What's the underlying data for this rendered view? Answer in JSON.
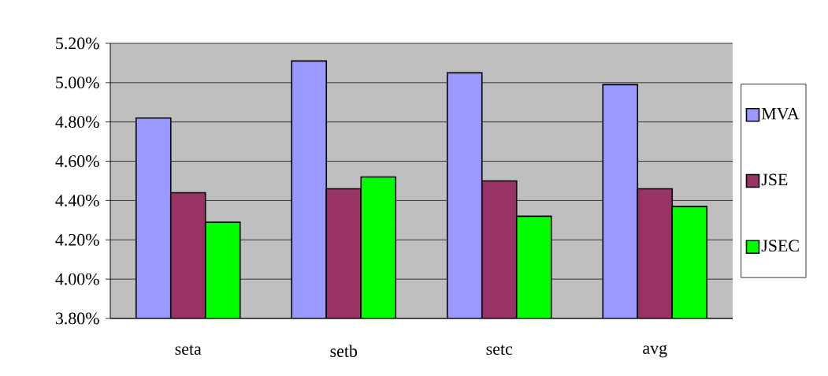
{
  "chart_data": {
    "type": "bar",
    "categories": [
      "seta",
      "setb",
      "setc",
      "avg"
    ],
    "series": [
      {
        "name": "MVA",
        "color": "#9999ff",
        "values": [
          4.82,
          5.11,
          5.05,
          4.99
        ]
      },
      {
        "name": "JSE",
        "color": "#993366",
        "values": [
          4.44,
          4.46,
          4.5,
          4.46
        ]
      },
      {
        "name": "JSEC",
        "color": "#00ff00",
        "values": [
          4.29,
          4.52,
          4.32,
          4.37
        ]
      }
    ],
    "ylim": [
      3.8,
      5.2
    ],
    "yticks": [
      {
        "value": 3.8,
        "label": "3.80%"
      },
      {
        "value": 4.0,
        "label": "4.00%"
      },
      {
        "value": 4.2,
        "label": "4.20%"
      },
      {
        "value": 4.4,
        "label": "4.40%"
      },
      {
        "value": 4.6,
        "label": "4.60%"
      },
      {
        "value": 4.8,
        "label": "4.80%"
      },
      {
        "value": 5.0,
        "label": "5.00%"
      },
      {
        "value": 5.2,
        "label": "5.20%"
      }
    ],
    "grid": "y",
    "legend": "right"
  }
}
